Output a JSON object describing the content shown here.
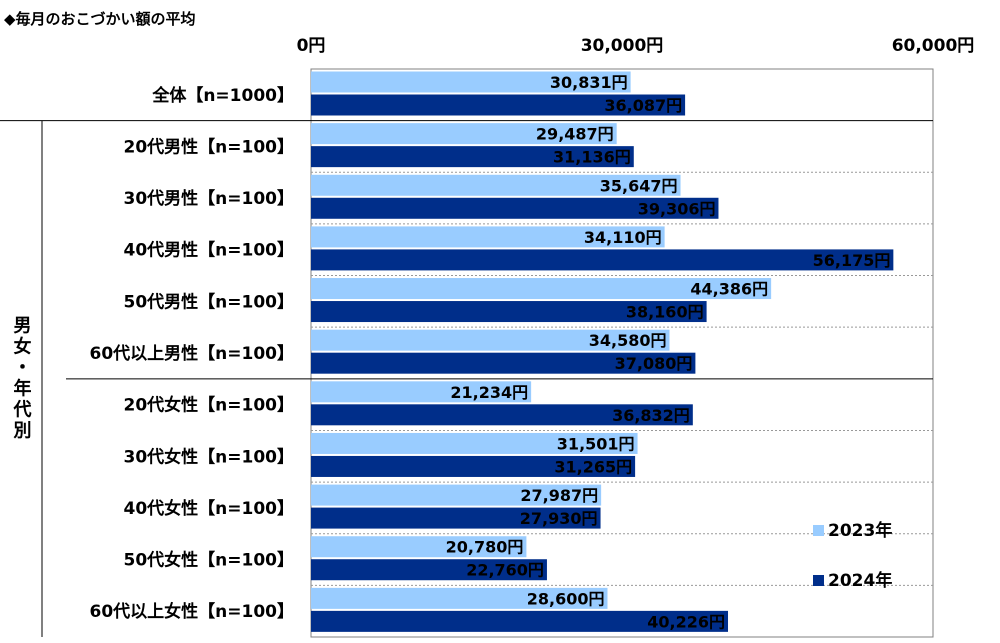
{
  "chart_data": {
    "type": "bar",
    "orientation": "horizontal",
    "title": "◆毎月のおこづかい額の平均",
    "xlim": [
      0,
      60000
    ],
    "x_ticks": [
      {
        "value": 0,
        "label": "0円"
      },
      {
        "value": 30000,
        "label": "30,000円"
      },
      {
        "value": 60000,
        "label": "60,000円"
      }
    ],
    "group_label": "男女・年代別",
    "categories": [
      "全体【n=1000】",
      "20代男性【n=100】",
      "30代男性【n=100】",
      "40代男性【n=100】",
      "50代男性【n=100】",
      "60代以上男性【n=100】",
      "20代女性【n=100】",
      "30代女性【n=100】",
      "40代女性【n=100】",
      "50代女性【n=100】",
      "60代以上女性【n=100】"
    ],
    "series": [
      {
        "name": "2023年",
        "color": "#99ccff",
        "values": [
          30831,
          29487,
          35647,
          34110,
          44386,
          34580,
          21234,
          31501,
          27987,
          20780,
          28600
        ],
        "labels": [
          "30,831円",
          "29,487円",
          "35,647円",
          "34,110円",
          "44,386円",
          "34,580円",
          "21,234円",
          "31,501円",
          "27,987円",
          "20,780円",
          "28,600円"
        ]
      },
      {
        "name": "2024年",
        "color": "#002e8a",
        "values": [
          36087,
          31136,
          39306,
          56175,
          38160,
          37080,
          36832,
          31265,
          27930,
          22760,
          40226
        ],
        "labels": [
          "36,087円",
          "31,136円",
          "39,306円",
          "56,175円",
          "38,160円",
          "37,080円",
          "36,832円",
          "31,265円",
          "27,930円",
          "22,760円",
          "40,226円"
        ]
      }
    ],
    "legend_position": "bottom-right",
    "grid": true
  }
}
